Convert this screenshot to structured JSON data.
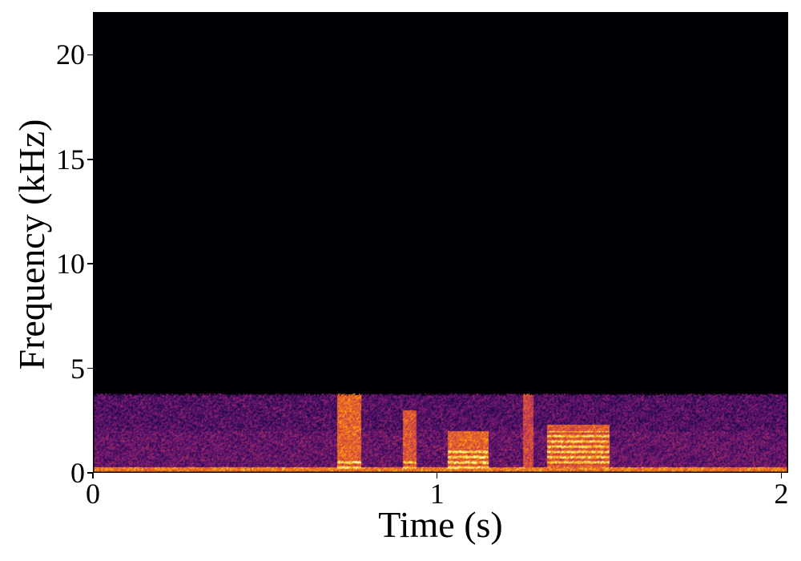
{
  "chart_data": {
    "type": "heatmap",
    "title": "",
    "xlabel": "Time (s)",
    "ylabel": "Frequency (kHz)",
    "xlim": [
      0,
      2.02
    ],
    "ylim": [
      0,
      22.05
    ],
    "xticks": [
      0,
      1,
      2
    ],
    "xtick_labels": [
      "0",
      "1",
      "2"
    ],
    "yticks": [
      0,
      5,
      10,
      15,
      20
    ],
    "ytick_labels": [
      "0",
      "5",
      "10",
      "15",
      "20"
    ],
    "colormap": "inferno",
    "grid": false,
    "legend": "none",
    "signal_bandwidth_khz": 3.75,
    "events": [
      {
        "t_start": 0.0,
        "t_end": 2.02,
        "f_low": 0,
        "f_high": 0.25,
        "level": 0.8
      },
      {
        "t_start": 0.71,
        "t_end": 0.78,
        "f_low": 0,
        "f_high": 3.8,
        "level": 0.75,
        "harmonic_band": [
          0.2,
          0.7
        ]
      },
      {
        "t_start": 0.9,
        "t_end": 0.94,
        "f_low": 0,
        "f_high": 3.0,
        "level": 0.7,
        "harmonic_band": [
          0.2,
          0.6
        ]
      },
      {
        "t_start": 1.03,
        "t_end": 1.15,
        "f_low": 0,
        "f_high": 2.0,
        "level": 0.75,
        "harmonic_band": [
          0.2,
          1.2
        ]
      },
      {
        "t_start": 1.25,
        "t_end": 1.28,
        "f_low": 0,
        "f_high": 3.8,
        "level": 0.65
      },
      {
        "t_start": 1.32,
        "t_end": 1.5,
        "f_low": 0.2,
        "f_high": 2.3,
        "level": 0.72,
        "harmonic_band": [
          0.3,
          2.0
        ]
      }
    ]
  }
}
